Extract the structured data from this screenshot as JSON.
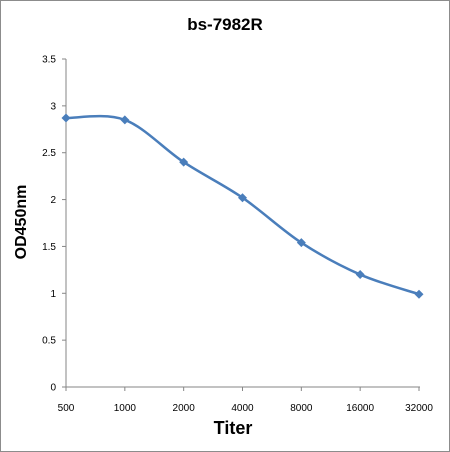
{
  "chart_data": {
    "type": "line",
    "title": "bs-7982R",
    "xlabel": "Titer",
    "ylabel": "OD450nm",
    "categories": [
      "500",
      "1000",
      "2000",
      "4000",
      "8000",
      "16000",
      "32000"
    ],
    "series": [
      {
        "values": [
          2.87,
          2.85,
          2.4,
          2.02,
          1.54,
          1.2,
          0.99
        ]
      }
    ],
    "ylim": [
      0,
      3.5
    ],
    "yticks": [
      "0",
      "0.5",
      "1",
      "1.5",
      "2",
      "2.5",
      "3",
      "3.5"
    ],
    "grid": false,
    "legend": "none",
    "smooth": true,
    "line_color": "#4a7ebb",
    "marker": "diamond"
  }
}
